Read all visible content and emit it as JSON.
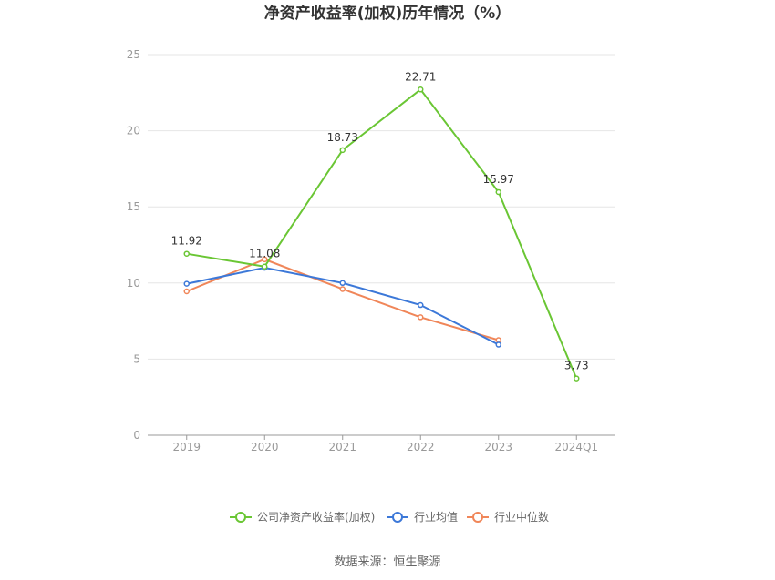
{
  "chart_data": {
    "type": "line",
    "title": "净资产收益率(加权)历年情况（%）",
    "categories": [
      "2019",
      "2020",
      "2021",
      "2022",
      "2023",
      "2024Q1"
    ],
    "ylim": [
      0,
      25
    ],
    "yticks": [
      "0",
      "5",
      "10",
      "15",
      "20",
      "25"
    ],
    "grid": true,
    "legend_position": "bottom",
    "series": [
      {
        "name": "公司净资产收益率(加权)",
        "color": "#6ac634",
        "values": [
          11.92,
          11.08,
          18.73,
          22.71,
          15.97,
          3.73
        ],
        "labels": [
          "11.92",
          "11.08",
          "18.73",
          "22.71",
          "15.97",
          "3.73"
        ]
      },
      {
        "name": "行业均值",
        "color": "#3c78d8",
        "values": [
          9.95,
          11.0,
          10.0,
          8.55,
          5.95,
          null
        ]
      },
      {
        "name": "行业中位数",
        "color": "#f08659",
        "values": [
          9.45,
          11.55,
          9.6,
          7.75,
          6.25,
          null
        ]
      }
    ]
  },
  "source": "数据来源：恒生聚源"
}
